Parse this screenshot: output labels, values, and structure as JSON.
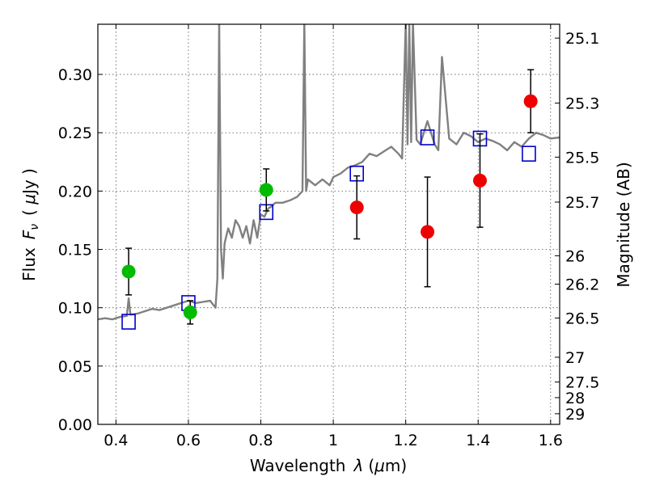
{
  "chart_data": {
    "type": "scatter",
    "xlabel": "Wavelength  λ (μm)",
    "ylabel": "Flux  F_ν  ( μJy )",
    "ylabel_parts": {
      "pre": "Flux",
      "sym": "F",
      "sub": "ν",
      "mid": "( ",
      "mu": "μ",
      "post": "Jy )"
    },
    "xlabel_parts": {
      "pre": "Wavelength",
      "sym": "λ",
      "unit_open": "(",
      "mu": "μ",
      "unit_post": "m)"
    },
    "y2label": "Magnitude (AB)",
    "xlim": [
      0.35,
      1.625
    ],
    "ylim": [
      0.0,
      0.343
    ],
    "grid": true,
    "x_ticks": [
      {
        "value": 0.4,
        "label": "0.4"
      },
      {
        "value": 0.6,
        "label": "0.6"
      },
      {
        "value": 0.8,
        "label": "0.8"
      },
      {
        "value": 1.0,
        "label": "1"
      },
      {
        "value": 1.2,
        "label": "1.2"
      },
      {
        "value": 1.4,
        "label": "1.4"
      },
      {
        "value": 1.6,
        "label": "1.6"
      }
    ],
    "y_ticks": [
      {
        "value": 0.0,
        "label": "0.00"
      },
      {
        "value": 0.05,
        "label": "0.05"
      },
      {
        "value": 0.1,
        "label": "0.10"
      },
      {
        "value": 0.15,
        "label": "0.15"
      },
      {
        "value": 0.2,
        "label": "0.20"
      },
      {
        "value": 0.25,
        "label": "0.25"
      },
      {
        "value": 0.3,
        "label": "0.30"
      }
    ],
    "y2_ticks": [
      {
        "mag": 25.1,
        "label": "25.1"
      },
      {
        "mag": 25.3,
        "label": "25.3"
      },
      {
        "mag": 25.5,
        "label": "25.5"
      },
      {
        "mag": 25.7,
        "label": "25.7"
      },
      {
        "mag": 26,
        "label": "26"
      },
      {
        "mag": 26.2,
        "label": "26.2"
      },
      {
        "mag": 26.5,
        "label": "26.5"
      },
      {
        "mag": 27,
        "label": "27"
      },
      {
        "mag": 27.5,
        "label": "27.5"
      },
      {
        "mag": 28,
        "label": "28"
      },
      {
        "mag": 29,
        "label": "29"
      }
    ],
    "series": [
      {
        "kind": "line",
        "color": "#808080",
        "x": [
          0.35,
          0.37,
          0.39,
          0.41,
          0.43,
          0.435,
          0.44,
          0.46,
          0.48,
          0.5,
          0.52,
          0.54,
          0.56,
          0.58,
          0.6,
          0.62,
          0.64,
          0.66,
          0.675,
          0.68,
          0.685,
          0.69,
          0.695,
          0.7,
          0.705,
          0.71,
          0.72,
          0.73,
          0.74,
          0.75,
          0.76,
          0.77,
          0.78,
          0.79,
          0.8,
          0.81,
          0.82,
          0.83,
          0.84,
          0.86,
          0.88,
          0.9,
          0.915,
          0.92,
          0.925,
          0.93,
          0.95,
          0.97,
          0.99,
          1.0,
          1.02,
          1.04,
          1.06,
          1.08,
          1.1,
          1.12,
          1.14,
          1.16,
          1.18,
          1.19,
          1.2,
          1.205,
          1.21,
          1.215,
          1.22,
          1.23,
          1.24,
          1.26,
          1.28,
          1.29,
          1.3,
          1.32,
          1.34,
          1.36,
          1.38,
          1.4,
          1.42,
          1.44,
          1.46,
          1.48,
          1.5,
          1.52,
          1.54,
          1.56,
          1.58,
          1.6,
          1.625
        ],
        "y": [
          0.09,
          0.091,
          0.09,
          0.092,
          0.093,
          0.108,
          0.094,
          0.095,
          0.097,
          0.099,
          0.098,
          0.1,
          0.102,
          0.104,
          0.106,
          0.104,
          0.105,
          0.106,
          0.1,
          0.125,
          0.345,
          0.15,
          0.125,
          0.155,
          0.162,
          0.168,
          0.16,
          0.175,
          0.17,
          0.16,
          0.17,
          0.155,
          0.175,
          0.16,
          0.18,
          0.178,
          0.185,
          0.187,
          0.19,
          0.19,
          0.192,
          0.195,
          0.2,
          0.345,
          0.2,
          0.21,
          0.205,
          0.21,
          0.205,
          0.212,
          0.215,
          0.22,
          0.222,
          0.225,
          0.232,
          0.23,
          0.234,
          0.238,
          0.232,
          0.228,
          0.345,
          0.24,
          0.345,
          0.242,
          0.345,
          0.244,
          0.24,
          0.26,
          0.24,
          0.235,
          0.315,
          0.245,
          0.24,
          0.25,
          0.247,
          0.242,
          0.245,
          0.243,
          0.24,
          0.235,
          0.242,
          0.238,
          0.245,
          0.25,
          0.248,
          0.245,
          0.246
        ]
      },
      {
        "kind": "squares",
        "color": "#0000cc",
        "x": [
          0.435,
          0.6,
          0.815,
          1.065,
          1.26,
          1.405,
          1.54
        ],
        "y": [
          0.088,
          0.104,
          0.182,
          0.215,
          0.246,
          0.245,
          0.232
        ]
      },
      {
        "kind": "points",
        "color": "#00bb00",
        "x": [
          0.435,
          0.605,
          0.815
        ],
        "y": [
          0.131,
          0.096,
          0.201
        ],
        "err": [
          0.02,
          0.01,
          0.018
        ]
      },
      {
        "kind": "points",
        "color": "#ee0000",
        "x": [
          1.065,
          1.26,
          1.405,
          1.545
        ],
        "y": [
          0.186,
          0.165,
          0.209,
          0.277
        ],
        "err": [
          0.027,
          0.047,
          0.04,
          0.027
        ]
      }
    ]
  }
}
